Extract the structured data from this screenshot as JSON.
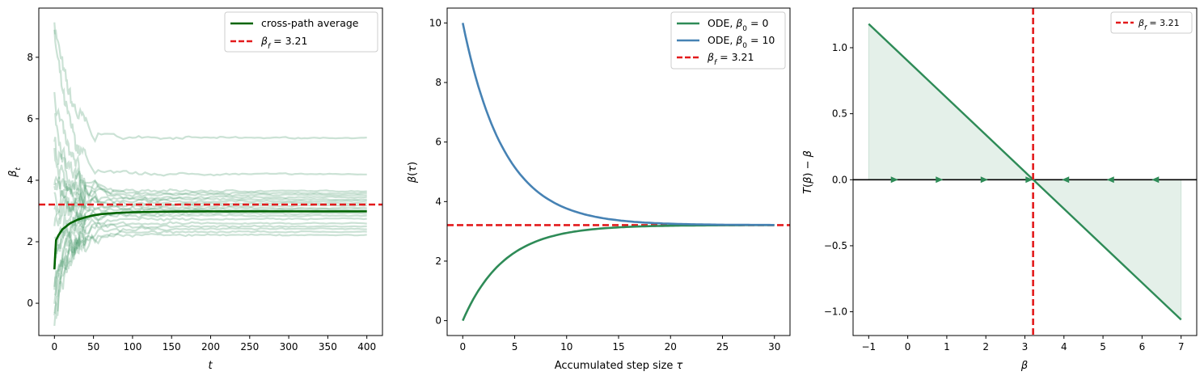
{
  "colors": {
    "avg_green": "#006400",
    "path_green": "#2e8b57",
    "ode_green": "#2e8b57",
    "ode_blue": "#4682b4",
    "ref_red": "#e31a1c",
    "fill_green": "#2e8b57",
    "zero_line": "#000000"
  },
  "chart_data": [
    {
      "type": "line",
      "xlabel": "t",
      "ylabel": "β_t",
      "xlim": [
        -20,
        420
      ],
      "ylim": [
        -1.05,
        9.6
      ],
      "xticks": [
        0,
        50,
        100,
        150,
        200,
        250,
        300,
        350,
        400
      ],
      "yticks": [
        0,
        2,
        4,
        6,
        8
      ],
      "legend": {
        "placement": "top-right",
        "entries": [
          "cross-path average",
          "β_f = 3.21"
        ]
      },
      "reference_line": {
        "orientation": "horizontal",
        "value": 3.21,
        "label": "β_f = 3.21"
      },
      "average_series": {
        "name": "cross-path average",
        "x": [
          0,
          1,
          2,
          5,
          10,
          15,
          20,
          30,
          40,
          50,
          60,
          80,
          100,
          150,
          200,
          250,
          300,
          350,
          400
        ],
        "y": [
          1.1,
          1.6,
          2.05,
          2.2,
          2.4,
          2.5,
          2.6,
          2.72,
          2.8,
          2.86,
          2.9,
          2.94,
          2.96,
          2.98,
          2.99,
          2.99,
          2.99,
          2.99,
          2.99
        ]
      },
      "sample_paths_final_values": [
        5.38,
        4.2,
        3.65,
        3.58,
        3.52,
        3.45,
        3.38,
        3.32,
        3.25,
        3.18,
        3.1,
        3.05,
        3.0,
        2.92,
        2.85,
        2.75,
        2.6,
        2.5,
        2.42,
        2.32,
        2.22
      ],
      "sample_paths_start_values": [
        9.3,
        8.8,
        7.0,
        6.2,
        5.2,
        4.7,
        4.1,
        3.6,
        3.4,
        2.9,
        2.4,
        2.0,
        1.6,
        1.2,
        0.8,
        0.4,
        0.1,
        -0.2,
        -0.4,
        -0.55,
        0.0
      ]
    },
    {
      "type": "line",
      "xlabel": "Accumulated step size τ",
      "ylabel": "β(τ)",
      "xlim": [
        -1.5,
        31.5
      ],
      "ylim": [
        -0.5,
        10.5
      ],
      "xticks": [
        0,
        5,
        10,
        15,
        20,
        25,
        30
      ],
      "yticks": [
        0,
        2,
        4,
        6,
        8,
        10
      ],
      "legend": {
        "placement": "top-right",
        "entries": [
          "ODE, β_0 = 0",
          "ODE, β_0 = 10",
          "β_f = 3.21"
        ]
      },
      "reference_line": {
        "orientation": "horizontal",
        "value": 3.21,
        "label": "β_f = 3.21"
      },
      "series": [
        {
          "name": "ODE, β_0 = 0",
          "start": 0,
          "limit": 3.21,
          "rate": 0.25
        },
        {
          "name": "ODE, β_0 = 10",
          "start": 10,
          "limit": 3.21,
          "rate": 0.25
        }
      ],
      "x_range": [
        0,
        30
      ]
    },
    {
      "type": "line",
      "xlabel": "β",
      "ylabel": "T(β) − β",
      "xlim": [
        -1.4,
        7.4
      ],
      "ylim": [
        -1.18,
        1.3
      ],
      "xticks": [
        -1,
        0,
        1,
        2,
        3,
        4,
        5,
        6,
        7
      ],
      "yticks": [
        -1.0,
        -0.5,
        0.0,
        0.5,
        1.0
      ],
      "legend": {
        "placement": "top-right",
        "entries": [
          "β_f = 3.21"
        ]
      },
      "reference_line": {
        "orientation": "vertical",
        "value": 3.21,
        "label": "β_f = 3.21"
      },
      "series": [
        {
          "name": "T(β) − β",
          "x": [
            -1,
            7
          ],
          "y": [
            1.18,
            -1.06
          ]
        }
      ],
      "arrow_markers": [
        {
          "x": -0.35,
          "direction": "right"
        },
        {
          "x": 0.8,
          "direction": "right"
        },
        {
          "x": 1.95,
          "direction": "right"
        },
        {
          "x": 3.1,
          "direction": "right"
        },
        {
          "x": 4.05,
          "direction": "left"
        },
        {
          "x": 5.2,
          "direction": "left"
        },
        {
          "x": 6.35,
          "direction": "left"
        }
      ]
    }
  ]
}
